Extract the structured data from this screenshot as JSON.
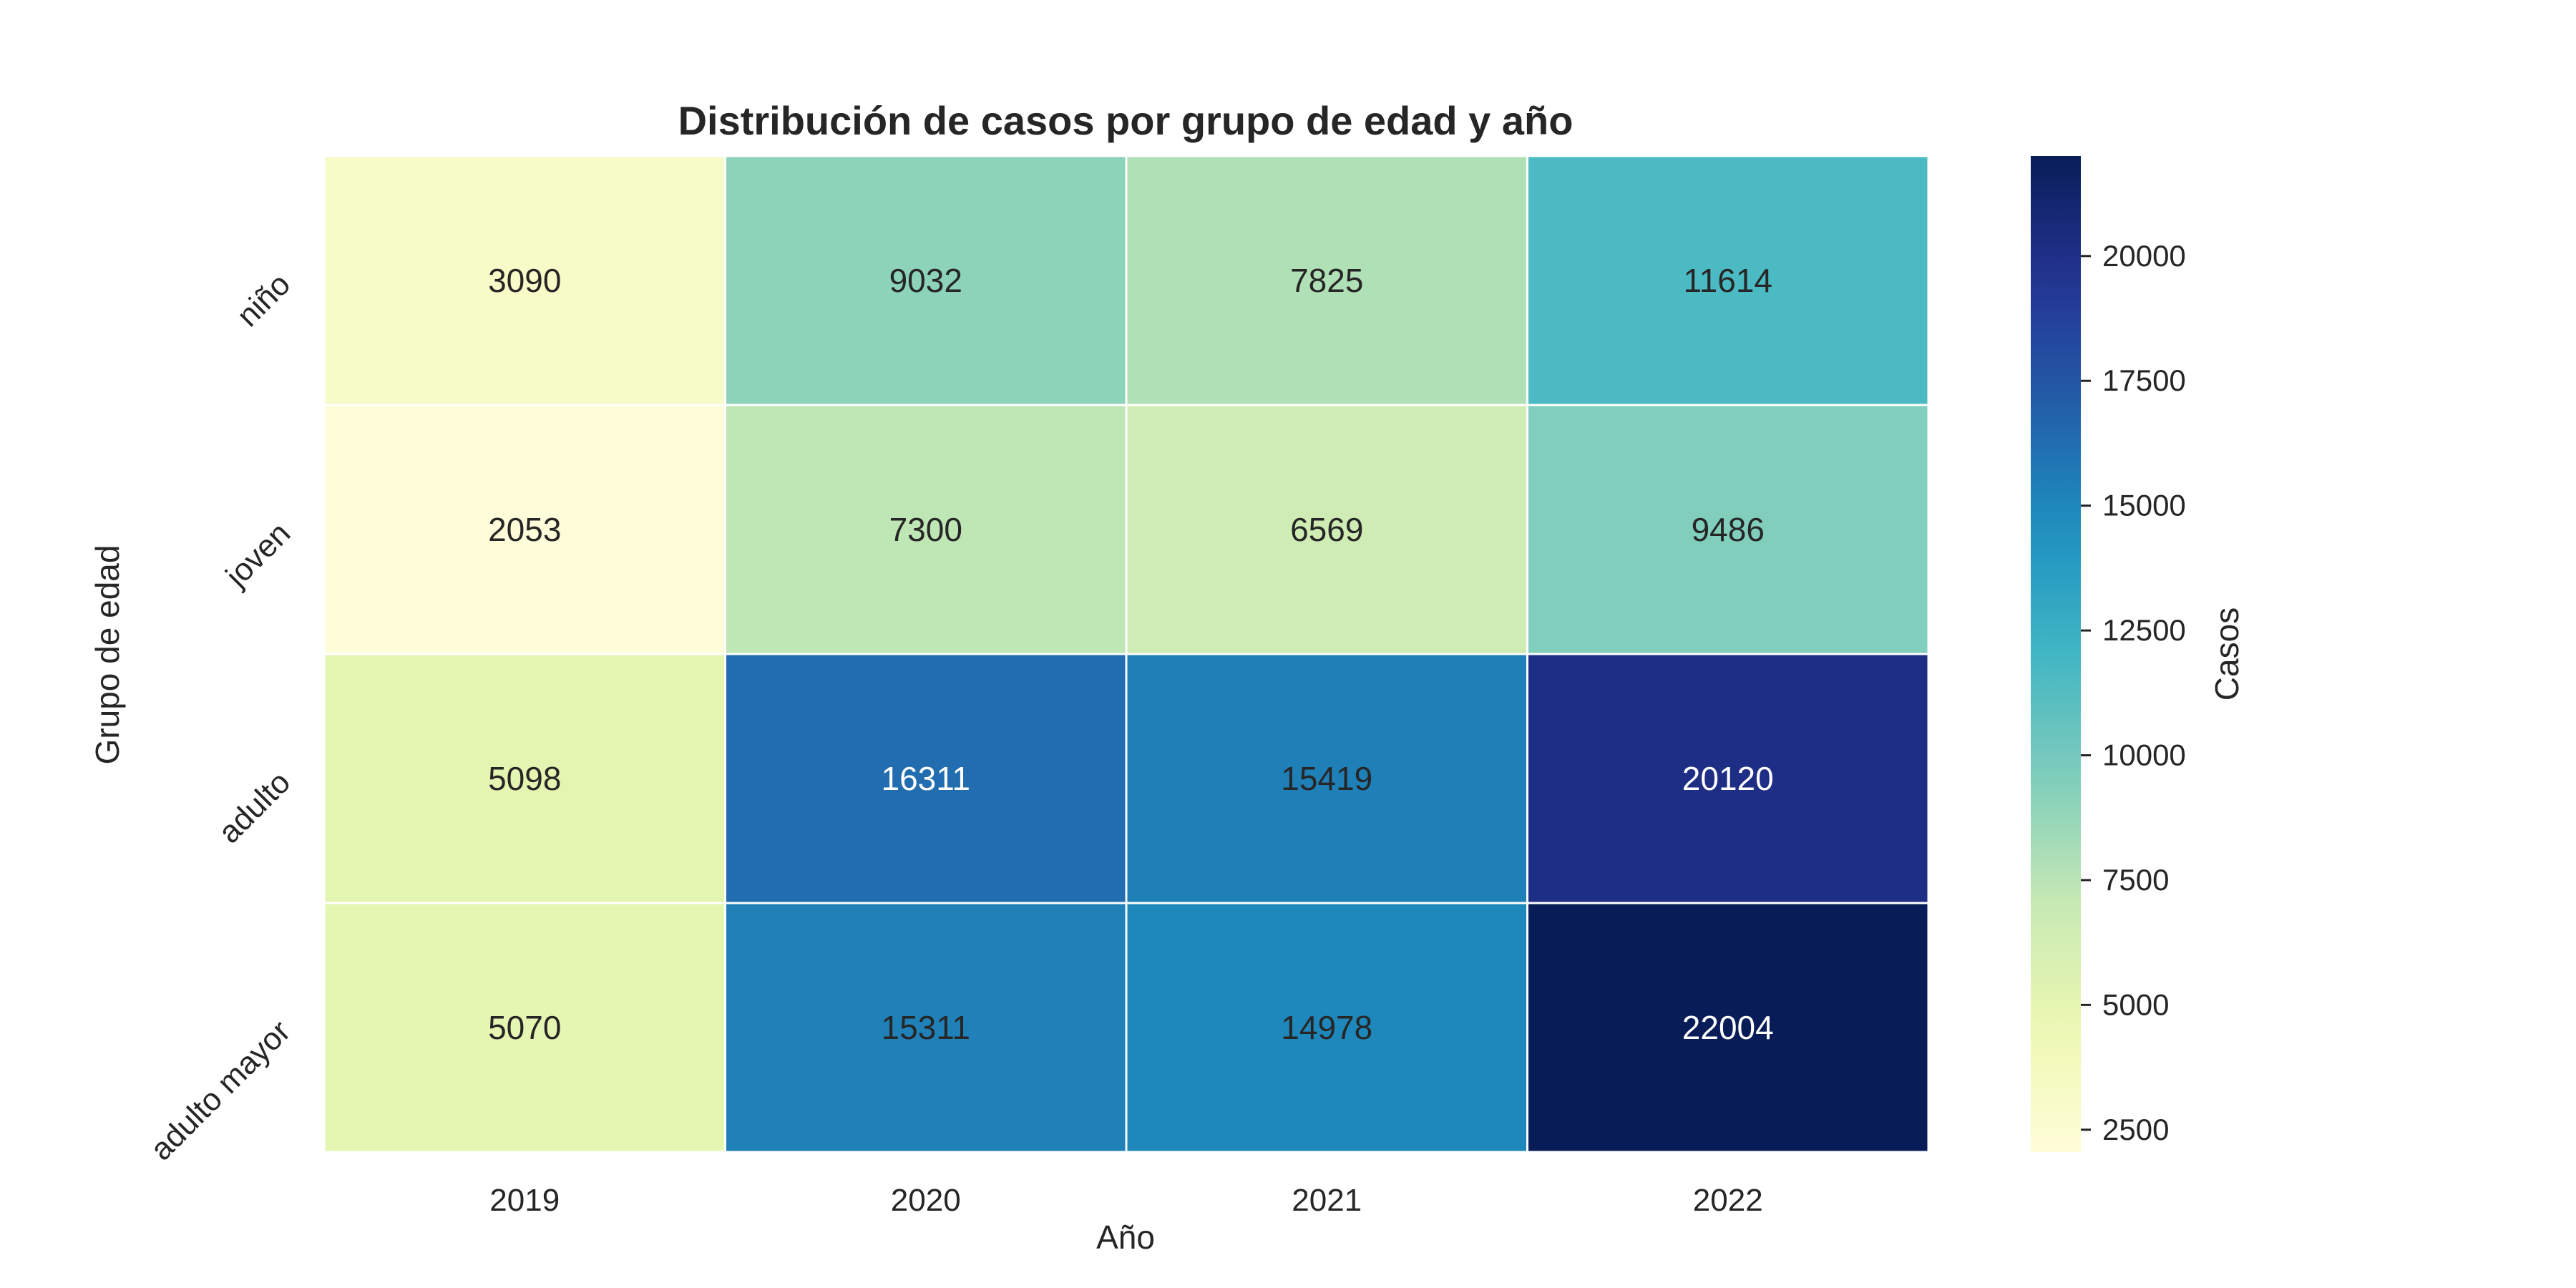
{
  "chart_data": {
    "type": "heatmap",
    "title": "Distribución de casos por grupo de edad y año",
    "xlabel": "Año",
    "ylabel": "Grupo de edad",
    "x_categories": [
      "2019",
      "2020",
      "2021",
      "2022"
    ],
    "y_categories": [
      "niño",
      "joven",
      "adulto",
      "adulto mayor"
    ],
    "values": [
      [
        3090,
        9032,
        7825,
        11614
      ],
      [
        2053,
        7300,
        6569,
        9486
      ],
      [
        5098,
        16311,
        15419,
        20120
      ],
      [
        5070,
        15311,
        14978,
        22004
      ]
    ],
    "colorbar": {
      "label": "Casos",
      "colormap": "YlGnBu",
      "range": [
        2053,
        22004
      ],
      "ticks": [
        2500,
        5000,
        7500,
        10000,
        12500,
        15000,
        17500,
        20000
      ]
    },
    "colors": {
      "light_text": "#ffffff",
      "dark_text": "#262626",
      "gridline": "#ffffff"
    }
  }
}
